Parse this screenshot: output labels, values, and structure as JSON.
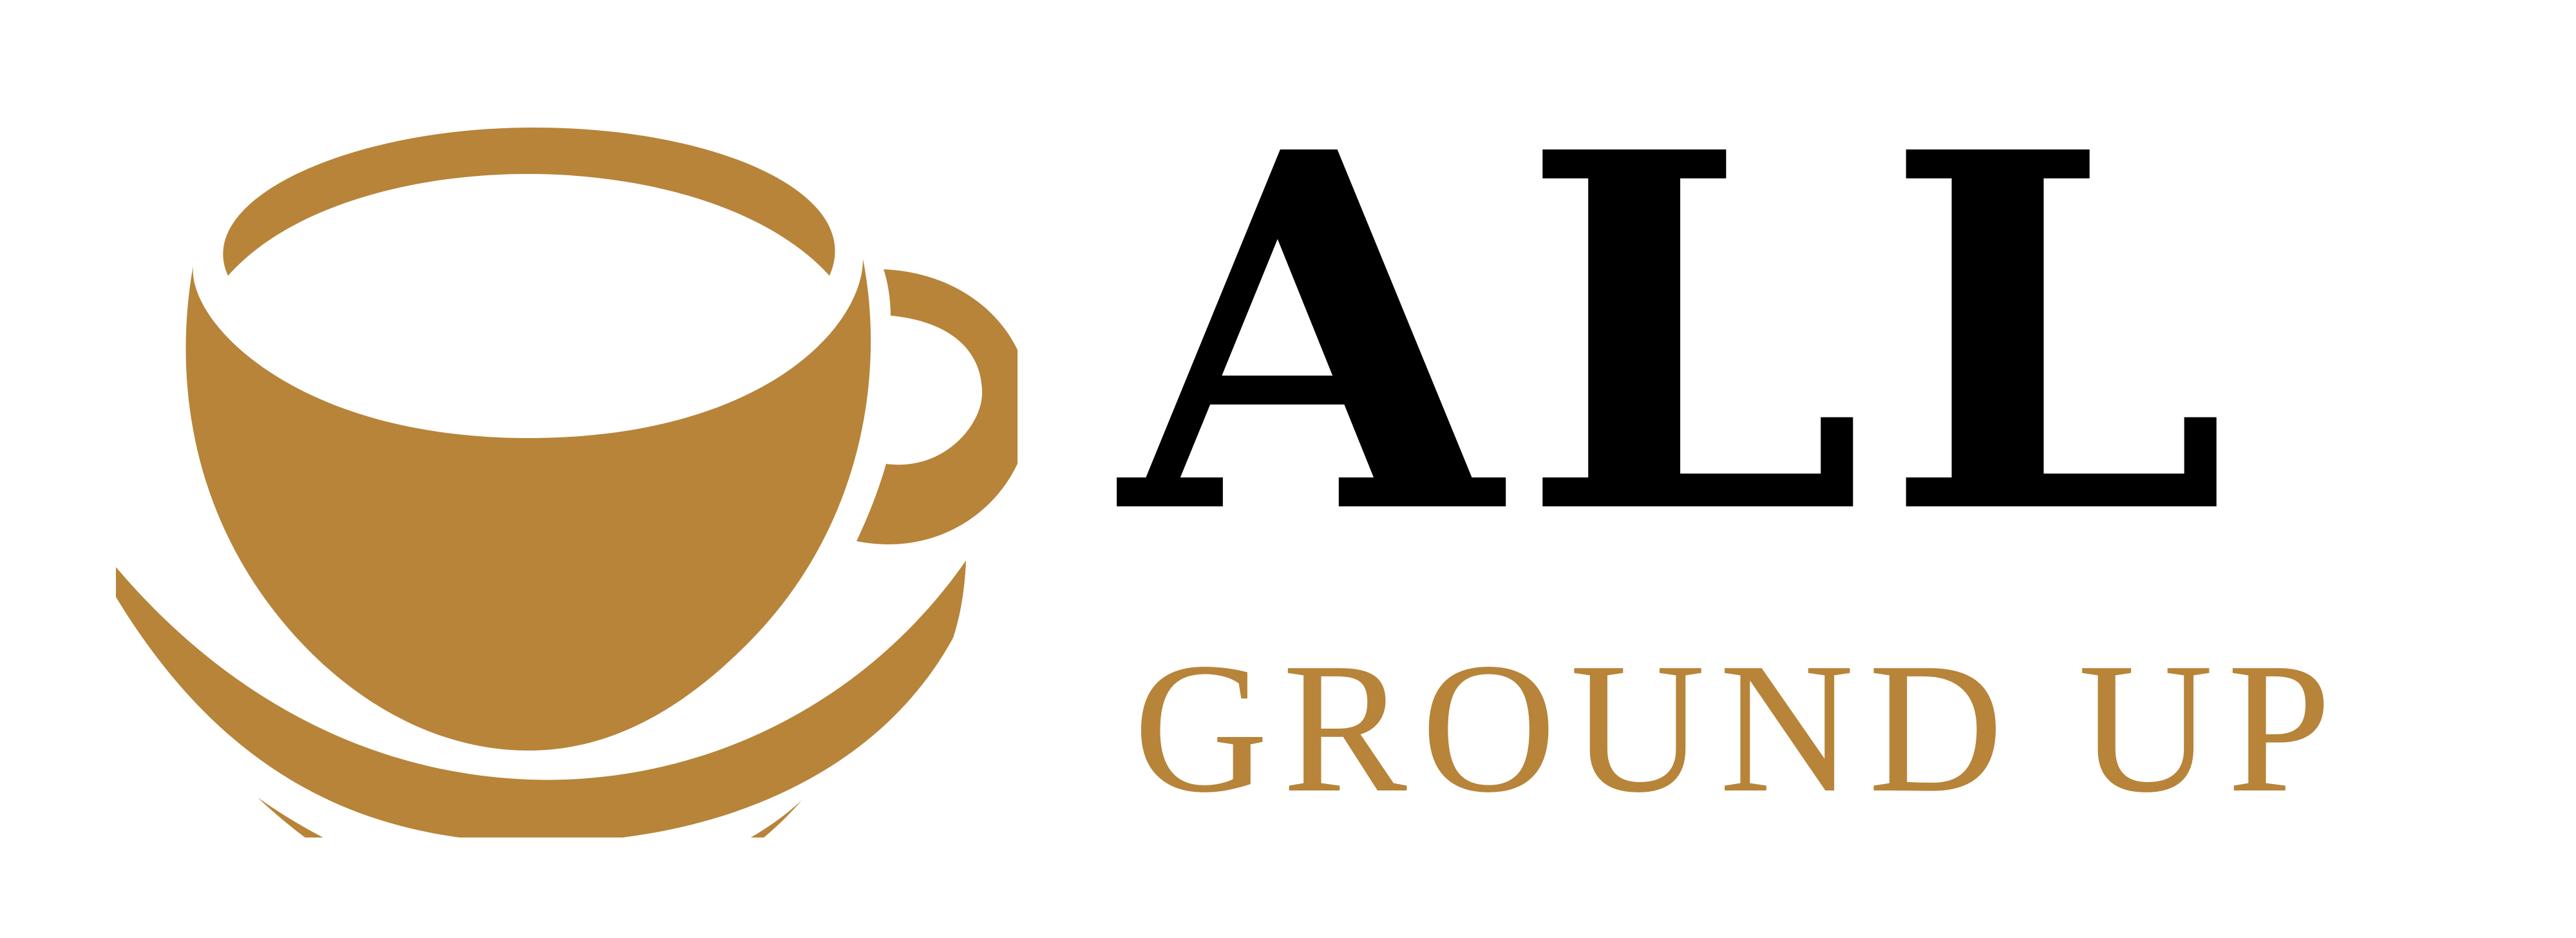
{
  "logo": {
    "brand_primary": "ALL",
    "brand_secondary": "GROUND UP",
    "icon": "coffee-cup-icon",
    "colors": {
      "gold": "#B78439",
      "black": "#000000",
      "background": "#FFFFFF"
    }
  }
}
